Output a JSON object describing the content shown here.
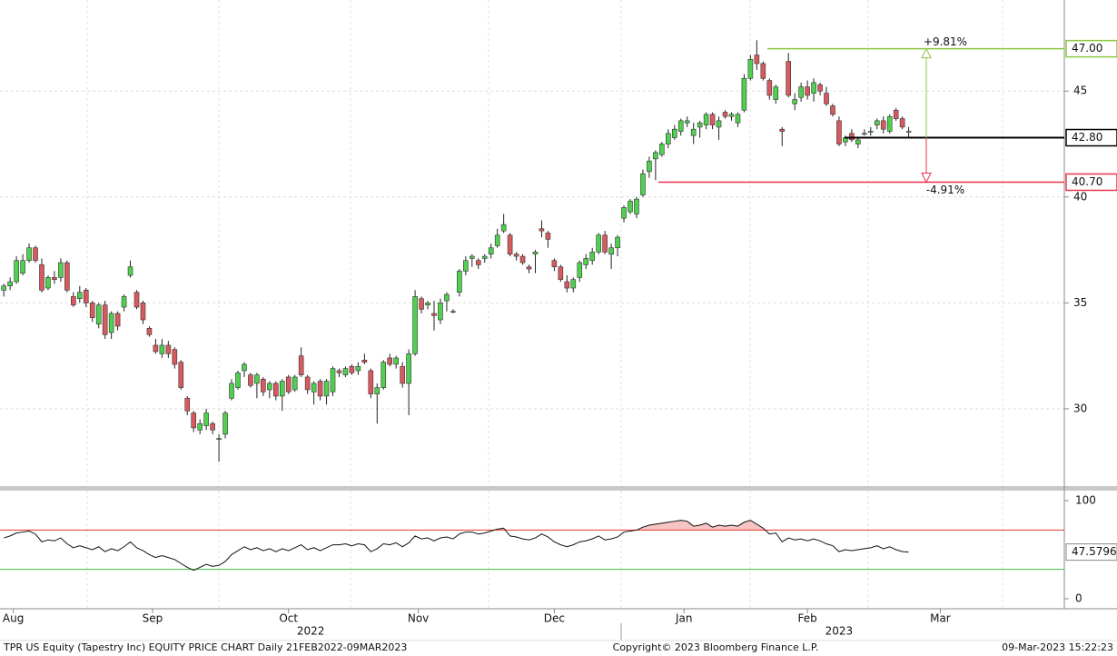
{
  "chart_data": [
    {
      "type": "candlestick",
      "up_color": "#4fd04f",
      "down_color": "#d85a5e",
      "ylim": [
        26.35,
        49.3
      ],
      "yticks": [
        30,
        35,
        40,
        45
      ],
      "xlim": [
        -0.6,
        167.6
      ],
      "xticks": [
        {
          "value": 1.5,
          "label": "Aug"
        },
        {
          "value": 23.5,
          "label": "Sep"
        },
        {
          "value": 45,
          "label": "Oct"
        },
        {
          "value": 65.5,
          "label": "Nov"
        },
        {
          "value": 87,
          "label": "Dec"
        },
        {
          "value": 107.5,
          "label": "Jan"
        },
        {
          "value": 127,
          "label": "Feb"
        },
        {
          "value": 148,
          "label": "Mar"
        }
      ],
      "year_ticks": [
        {
          "value": 48.5,
          "label": "2022"
        },
        {
          "value": 132,
          "label": "2023"
        }
      ],
      "levels": [
        {
          "value": 47,
          "label": "47.00",
          "color": "#8cc63f"
        },
        {
          "value": 42.8,
          "label": "42.80",
          "color": "#000000"
        },
        {
          "value": 40.7,
          "label": "40.70",
          "color": "#e8334a"
        }
      ],
      "annotations": [
        "+9.81%",
        "-4.91%"
      ],
      "candles": [
        [
          35.6,
          35.9,
          35.3,
          35.8
        ],
        [
          35.8,
          36.2,
          35.6,
          36.0
        ],
        [
          36.0,
          37.2,
          35.9,
          37.0
        ],
        [
          36.4,
          37.3,
          36.3,
          37.0
        ],
        [
          37.0,
          37.8,
          36.9,
          37.6
        ],
        [
          37.6,
          37.7,
          36.9,
          37.0
        ],
        [
          36.8,
          37.1,
          35.5,
          35.6
        ],
        [
          35.7,
          36.3,
          35.6,
          36.2
        ],
        [
          36.2,
          36.5,
          35.9,
          36.1
        ],
        [
          36.2,
          37.1,
          36.0,
          36.9
        ],
        [
          36.9,
          37.0,
          35.5,
          35.6
        ],
        [
          35.3,
          35.5,
          34.8,
          34.9
        ],
        [
          35.2,
          35.8,
          35.0,
          35.5
        ],
        [
          35.6,
          35.7,
          34.8,
          35.0
        ],
        [
          35.0,
          35.1,
          34.1,
          34.3
        ],
        [
          34.0,
          35.0,
          33.8,
          34.9
        ],
        [
          34.9,
          35.1,
          33.3,
          33.5
        ],
        [
          33.6,
          34.6,
          33.3,
          34.5
        ],
        [
          34.5,
          34.6,
          33.7,
          33.9
        ],
        [
          34.8,
          35.4,
          34.6,
          35.3
        ],
        [
          36.3,
          37.0,
          36.2,
          36.7
        ],
        [
          35.5,
          35.6,
          34.7,
          34.8
        ],
        [
          35.0,
          35.1,
          34.0,
          34.2
        ],
        [
          33.8,
          33.9,
          33.4,
          33.5
        ],
        [
          33.0,
          33.3,
          32.6,
          32.7
        ],
        [
          32.6,
          33.3,
          32.4,
          33.0
        ],
        [
          33.0,
          33.2,
          32.4,
          32.6
        ],
        [
          32.8,
          32.9,
          31.9,
          32.1
        ],
        [
          32.2,
          32.3,
          30.9,
          31.0
        ],
        [
          30.5,
          30.6,
          29.7,
          29.9
        ],
        [
          29.8,
          29.9,
          28.9,
          29.1
        ],
        [
          29.0,
          29.5,
          28.8,
          29.3
        ],
        [
          29.2,
          30.0,
          29.0,
          29.8
        ],
        [
          29.3,
          29.4,
          28.8,
          29.0
        ],
        [
          28.6,
          28.8,
          27.5,
          28.6
        ],
        [
          28.8,
          29.9,
          28.6,
          29.8
        ],
        [
          30.5,
          31.4,
          30.4,
          31.2
        ],
        [
          31.0,
          31.8,
          30.9,
          31.7
        ],
        [
          31.8,
          32.2,
          31.5,
          32.1
        ],
        [
          31.6,
          31.7,
          31.0,
          31.1
        ],
        [
          31.2,
          31.7,
          30.5,
          31.6
        ],
        [
          31.4,
          31.5,
          30.6,
          30.8
        ],
        [
          30.9,
          31.3,
          30.5,
          31.2
        ],
        [
          31.2,
          31.3,
          30.4,
          30.6
        ],
        [
          30.6,
          31.4,
          29.9,
          31.3
        ],
        [
          31.5,
          31.6,
          30.7,
          30.8
        ],
        [
          30.9,
          31.6,
          30.8,
          31.5
        ],
        [
          32.5,
          32.9,
          31.5,
          31.6
        ],
        [
          31.5,
          31.6,
          30.7,
          30.9
        ],
        [
          30.8,
          31.3,
          30.2,
          31.2
        ],
        [
          31.3,
          31.4,
          30.4,
          30.6
        ],
        [
          30.6,
          31.4,
          30.2,
          31.3
        ],
        [
          30.8,
          32.0,
          30.6,
          31.9
        ],
        [
          31.8,
          31.9,
          31.5,
          31.7
        ],
        [
          31.6,
          32.0,
          31.5,
          31.9
        ],
        [
          32.0,
          32.1,
          31.6,
          31.7
        ],
        [
          31.8,
          32.2,
          31.6,
          32.0
        ],
        [
          32.3,
          32.6,
          32.1,
          32.2
        ],
        [
          31.8,
          31.9,
          30.5,
          30.7
        ],
        [
          30.7,
          31.2,
          29.3,
          31.0
        ],
        [
          31.0,
          32.3,
          30.9,
          32.2
        ],
        [
          32.4,
          32.6,
          32.0,
          32.1
        ],
        [
          32.1,
          32.5,
          31.9,
          32.4
        ],
        [
          32.0,
          32.2,
          31.0,
          31.2
        ],
        [
          31.2,
          32.8,
          29.7,
          32.6
        ],
        [
          32.6,
          35.6,
          32.5,
          35.3
        ],
        [
          35.2,
          35.3,
          34.5,
          34.7
        ],
        [
          34.9,
          35.1,
          34.7,
          35.0
        ],
        [
          34.5,
          35.1,
          33.7,
          34.4
        ],
        [
          34.2,
          35.2,
          34.0,
          35.0
        ],
        [
          35.1,
          35.5,
          34.6,
          35.4
        ],
        [
          34.6,
          34.7,
          34.5,
          34.6
        ],
        [
          35.5,
          36.6,
          35.3,
          36.5
        ],
        [
          36.5,
          37.2,
          36.3,
          37.0
        ],
        [
          37.1,
          37.3,
          36.7,
          37.2
        ],
        [
          37.0,
          37.1,
          36.6,
          36.8
        ],
        [
          37.1,
          37.3,
          36.9,
          37.2
        ],
        [
          37.3,
          37.8,
          37.1,
          37.6
        ],
        [
          37.7,
          38.5,
          37.6,
          38.2
        ],
        [
          38.4,
          39.2,
          38.3,
          38.7
        ],
        [
          38.2,
          38.3,
          37.2,
          37.3
        ],
        [
          37.3,
          37.4,
          37.0,
          37.2
        ],
        [
          37.2,
          37.3,
          36.8,
          36.9
        ],
        [
          36.7,
          36.8,
          36.4,
          36.6
        ],
        [
          37.3,
          37.5,
          36.4,
          37.4
        ],
        [
          38.5,
          38.9,
          38.1,
          38.4
        ],
        [
          38.3,
          38.4,
          37.6,
          38.0
        ],
        [
          37.0,
          37.1,
          36.5,
          36.7
        ],
        [
          36.7,
          36.8,
          36.0,
          36.1
        ],
        [
          36.0,
          36.3,
          35.5,
          35.7
        ],
        [
          35.7,
          36.2,
          35.5,
          36.1
        ],
        [
          36.2,
          37.0,
          36.0,
          36.9
        ],
        [
          36.8,
          37.3,
          36.6,
          37.1
        ],
        [
          37.0,
          37.6,
          36.8,
          37.4
        ],
        [
          37.4,
          38.3,
          37.3,
          38.2
        ],
        [
          38.2,
          38.4,
          37.3,
          37.4
        ],
        [
          37.3,
          37.8,
          36.6,
          37.6
        ],
        [
          37.6,
          38.2,
          37.2,
          38.1
        ],
        [
          39.0,
          39.6,
          38.8,
          39.5
        ],
        [
          39.3,
          39.9,
          39.2,
          39.8
        ],
        [
          39.2,
          40.0,
          39.0,
          39.9
        ],
        [
          40.1,
          41.3,
          40.0,
          41.1
        ],
        [
          41.2,
          41.9,
          40.9,
          41.7
        ],
        [
          41.8,
          42.2,
          40.8,
          42.1
        ],
        [
          42.0,
          42.6,
          41.9,
          42.5
        ],
        [
          42.5,
          43.2,
          42.3,
          43.0
        ],
        [
          42.8,
          43.4,
          42.7,
          43.2
        ],
        [
          43.1,
          43.7,
          42.9,
          43.6
        ],
        [
          43.5,
          43.8,
          43.3,
          43.6
        ],
        [
          42.9,
          43.5,
          42.5,
          43.2
        ],
        [
          43.3,
          43.6,
          42.8,
          43.5
        ],
        [
          43.4,
          44.0,
          43.2,
          43.9
        ],
        [
          43.9,
          44.0,
          43.2,
          43.4
        ],
        [
          43.3,
          43.8,
          42.7,
          43.6
        ],
        [
          44.0,
          44.1,
          43.7,
          43.8
        ],
        [
          43.8,
          44.0,
          43.6,
          43.9
        ],
        [
          43.5,
          44.0,
          43.3,
          43.9
        ],
        [
          44.1,
          45.8,
          44.0,
          45.6
        ],
        [
          45.6,
          46.7,
          45.5,
          46.5
        ],
        [
          46.7,
          47.4,
          46.0,
          46.3
        ],
        [
          46.3,
          46.4,
          45.5,
          45.6
        ],
        [
          45.5,
          45.6,
          44.6,
          44.8
        ],
        [
          44.6,
          45.3,
          44.4,
          45.2
        ],
        [
          43.2,
          43.3,
          42.4,
          43.1
        ],
        [
          46.4,
          46.8,
          44.7,
          44.8
        ],
        [
          44.4,
          44.9,
          44.1,
          44.6
        ],
        [
          44.7,
          45.4,
          44.5,
          45.2
        ],
        [
          45.2,
          45.5,
          44.6,
          44.8
        ],
        [
          44.9,
          45.6,
          44.5,
          45.4
        ],
        [
          45.3,
          45.4,
          44.8,
          45.0
        ],
        [
          44.9,
          45.2,
          44.3,
          44.4
        ],
        [
          44.3,
          44.4,
          43.8,
          43.9
        ],
        [
          43.6,
          43.8,
          42.4,
          42.5
        ],
        [
          42.6,
          42.9,
          42.4,
          42.8
        ],
        [
          43.0,
          43.2,
          42.6,
          42.7
        ],
        [
          42.5,
          42.8,
          42.3,
          42.7
        ],
        [
          43.0,
          43.2,
          42.9,
          43.0
        ],
        [
          43.1,
          43.3,
          42.9,
          43.1
        ],
        [
          43.4,
          43.7,
          43.2,
          43.6
        ],
        [
          43.6,
          43.8,
          43.0,
          43.2
        ],
        [
          43.1,
          43.9,
          43.0,
          43.8
        ],
        [
          44.1,
          44.2,
          43.6,
          43.7
        ],
        [
          43.7,
          43.8,
          43.2,
          43.3
        ],
        [
          43.1,
          43.3,
          42.8,
          43.1
        ]
      ]
    },
    {
      "type": "line",
      "color": "#111111",
      "ylim": [
        -10.2,
        110.2
      ],
      "yticks": [
        0,
        100
      ],
      "bands": [
        {
          "value": 70,
          "color": "#e0362c"
        },
        {
          "value": 30,
          "color": "#3fc03f"
        }
      ],
      "overbought_fill": "#f7c4c4",
      "values": [
        62,
        64,
        67,
        68,
        69,
        66,
        58,
        60,
        59,
        62,
        56,
        52,
        54,
        52,
        50,
        53,
        48,
        51,
        49,
        53,
        58,
        52,
        49,
        45,
        42,
        44,
        42,
        40,
        36,
        32,
        29,
        32,
        35,
        33,
        34,
        38,
        45,
        49,
        53,
        50,
        52,
        49,
        51,
        48,
        51,
        49,
        52,
        55,
        50,
        52,
        49,
        52,
        55,
        55,
        56,
        54,
        56,
        55,
        48,
        51,
        56,
        55,
        57,
        53,
        57,
        64,
        61,
        62,
        59,
        62,
        63,
        61,
        66,
        68,
        68,
        66,
        67,
        69,
        71,
        72,
        64,
        63,
        61,
        60,
        62,
        66,
        63,
        58,
        55,
        53,
        55,
        58,
        59,
        61,
        64,
        60,
        61,
        63,
        68,
        69,
        70,
        73,
        75,
        76,
        77,
        78,
        79,
        80,
        79,
        74,
        75,
        77,
        73,
        75,
        74,
        75,
        74,
        78,
        80,
        76,
        72,
        66,
        67,
        58,
        62,
        60,
        61,
        59,
        61,
        59,
        56,
        54,
        48,
        50,
        49,
        50,
        51,
        52,
        54,
        51,
        53,
        50,
        48,
        47.5796
      ]
    }
  ],
  "footer": {
    "left": "TPR US Equity (Tapestry Inc) EQUITY PRICE CHART  Daily 21FEB2022-09MAR2023",
    "center": "Copyright© 2023 Bloomberg Finance L.P.",
    "right": "09-Mar-2023 15:22:23"
  }
}
